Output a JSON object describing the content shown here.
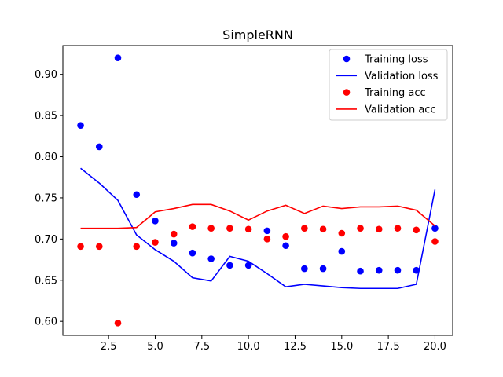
{
  "chart_data": {
    "type": "line",
    "title": "SimpleRNN",
    "xlabel": "",
    "ylabel": "",
    "xlim": [
      0.05,
      20.95
    ],
    "ylim": [
      0.583,
      0.935
    ],
    "xticks": [
      2.5,
      5.0,
      7.5,
      10.0,
      12.5,
      15.0,
      17.5,
      20.0
    ],
    "xtick_labels": [
      "2.5",
      "5.0",
      "7.5",
      "10.0",
      "12.5",
      "15.0",
      "17.5",
      "20.0"
    ],
    "yticks": [
      0.6,
      0.65,
      0.7,
      0.75,
      0.8,
      0.85,
      0.9
    ],
    "ytick_labels": [
      "0.60",
      "0.65",
      "0.70",
      "0.75",
      "0.80",
      "0.85",
      "0.90"
    ],
    "grid": false,
    "legend_position": "top-right",
    "x": [
      1,
      2,
      3,
      4,
      5,
      6,
      7,
      8,
      9,
      10,
      11,
      12,
      13,
      14,
      15,
      16,
      17,
      18,
      19,
      20
    ],
    "series": [
      {
        "name": "Training loss",
        "style": "points",
        "color": "#0000ff",
        "values": [
          0.838,
          0.812,
          0.92,
          0.754,
          0.722,
          0.695,
          0.683,
          0.676,
          0.668,
          0.668,
          0.71,
          0.692,
          0.664,
          0.664,
          0.685,
          0.661,
          0.662,
          0.662,
          0.662,
          0.713
        ]
      },
      {
        "name": "Validation loss",
        "style": "line",
        "color": "#0000ff",
        "values": [
          0.786,
          0.768,
          0.747,
          0.705,
          0.687,
          0.673,
          0.653,
          0.649,
          0.679,
          0.673,
          0.658,
          0.642,
          0.645,
          0.643,
          0.641,
          0.64,
          0.64,
          0.64,
          0.645,
          0.76
        ]
      },
      {
        "name": "Training acc",
        "style": "points",
        "color": "#ff0000",
        "values": [
          0.691,
          0.691,
          0.598,
          0.691,
          0.696,
          0.706,
          0.715,
          0.713,
          0.713,
          0.712,
          0.7,
          0.703,
          0.713,
          0.712,
          0.707,
          0.713,
          0.712,
          0.713,
          0.711,
          0.697
        ]
      },
      {
        "name": "Validation acc",
        "style": "line",
        "color": "#ff0000",
        "values": [
          0.713,
          0.713,
          0.713,
          0.714,
          0.733,
          0.737,
          0.742,
          0.742,
          0.734,
          0.723,
          0.734,
          0.741,
          0.731,
          0.74,
          0.737,
          0.739,
          0.739,
          0.74,
          0.735,
          0.716
        ]
      }
    ]
  }
}
